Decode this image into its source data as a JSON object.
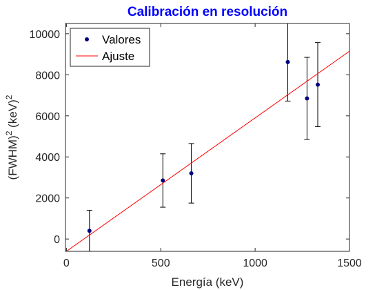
{
  "chart_data": {
    "type": "scatter",
    "title": "Calibración en resolución",
    "xlabel": "Energía (keV)",
    "ylabel": {
      "base": "(FWHM)",
      "base_sup": "2",
      "unit": " (keV)",
      "unit_sup": "2"
    },
    "xlim": [
      -5,
      1500
    ],
    "ylim": [
      -600,
      10500
    ],
    "xticks": [
      0,
      500,
      1000,
      1500
    ],
    "yticks": [
      0,
      2000,
      4000,
      6000,
      8000,
      10000
    ],
    "grid": false,
    "legend_position": "top-left",
    "series": [
      {
        "name": "Valores",
        "kind": "points-with-errorbars",
        "color": "#00007F",
        "points": [
          {
            "x": 122,
            "y": 400,
            "err": 1000
          },
          {
            "x": 511,
            "y": 2850,
            "err": 1300
          },
          {
            "x": 662,
            "y": 3200,
            "err": 1450
          },
          {
            "x": 1173,
            "y": 8620,
            "err": 1900
          },
          {
            "x": 1275,
            "y": 6850,
            "err": 2000
          },
          {
            "x": 1332,
            "y": 7520,
            "err": 2050
          }
        ]
      },
      {
        "name": "Ajuste",
        "kind": "line",
        "color": "#FF0000",
        "slope": 6.5,
        "intercept": -600
      }
    ]
  },
  "colors": {
    "title": "#0000FF",
    "errorbar": "#000000",
    "axes": "#262626"
  }
}
